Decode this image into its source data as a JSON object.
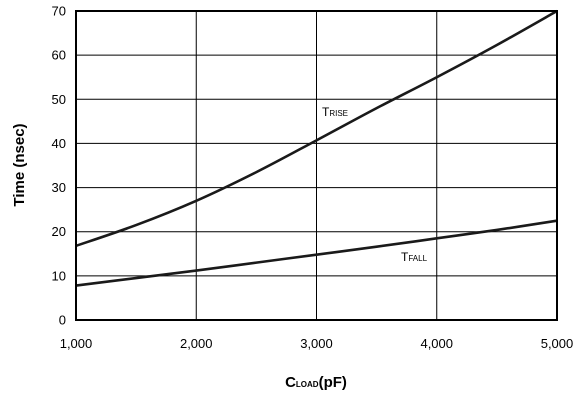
{
  "chart_data": {
    "type": "line",
    "xlabel": {
      "main": "C",
      "sub": "LOAD",
      "unit": "(pF)"
    },
    "ylabel": "Time (nsec)",
    "xlim": [
      1000,
      5000
    ],
    "ylim": [
      0,
      70
    ],
    "x_ticks": [
      "1,000",
      "2,000",
      "3,000",
      "4,000",
      "5,000"
    ],
    "y_ticks": [
      "0",
      "10",
      "20",
      "30",
      "40",
      "50",
      "60",
      "70"
    ],
    "grid": true,
    "series": [
      {
        "name": "TRISE",
        "label": {
          "main": "T",
          "sub": "RISE"
        },
        "x": [
          1000,
          1500,
          2000,
          2500,
          3000,
          3500,
          4000,
          4500,
          5000
        ],
        "y": [
          16.8,
          21.5,
          27,
          33.5,
          40.7,
          48,
          55,
          62.3,
          70
        ]
      },
      {
        "name": "TFALL",
        "label": {
          "main": "T",
          "sub": "FALL"
        },
        "x": [
          1000,
          1500,
          2000,
          2500,
          3000,
          3500,
          4000,
          4500,
          5000
        ],
        "y": [
          7.8,
          9.5,
          11.2,
          13,
          14.8,
          16.6,
          18.5,
          20.4,
          22.5
        ]
      }
    ]
  }
}
